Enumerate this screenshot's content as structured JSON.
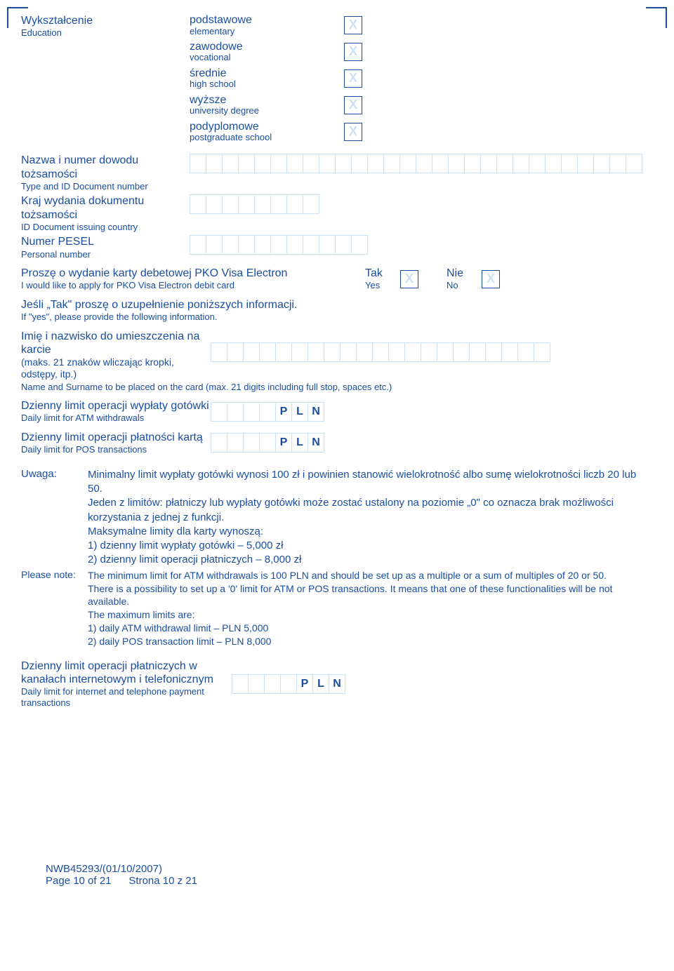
{
  "colors": {
    "primary": "#1a4ea0",
    "light_cell_border": "#cde0f5",
    "background": "#ffffff",
    "checkbox_x": "#cde0f5"
  },
  "typography": {
    "font_family": "Arial, Helvetica, sans-serif",
    "label_pl_size": 16,
    "label_en_size": 13,
    "note_size": 15
  },
  "education": {
    "label_pl": "Wykształcenie",
    "label_en": "Education",
    "options": [
      {
        "pl": "podstawowe",
        "en": "elementary"
      },
      {
        "pl": "zawodowe",
        "en": "vocational"
      },
      {
        "pl": "średnie",
        "en": "high school"
      },
      {
        "pl": "wyższe",
        "en": "university degree"
      },
      {
        "pl": "podyplomowe",
        "en": "postgraduate school"
      }
    ],
    "checkbox_glyph": "X"
  },
  "id_doc": {
    "label_pl": "Nazwa i numer dowodu tożsamości",
    "label_en": "Type and ID Document number",
    "cells": 28
  },
  "id_country": {
    "label_pl": "Kraj wydania dokumentu tożsamości",
    "label_en": "ID Document issuing country",
    "cells": 8
  },
  "pesel": {
    "label_pl": "Numer PESEL",
    "label_en": "Personal number",
    "cells": 11
  },
  "card_request": {
    "text_pl": "Proszę o wydanie karty debetowej PKO Visa Electron",
    "text_en": "I would like to apply for PKO Visa Electron debit card",
    "yes_pl": "Tak",
    "yes_en": "Yes",
    "no_pl": "Nie",
    "no_en": "No",
    "checkbox_glyph": "X"
  },
  "if_yes": {
    "text_pl": "Jeśli „Tak\" proszę o uzupełnienie poniższych informacji.",
    "text_en": "If \"yes\", please provide the following information."
  },
  "card_name": {
    "label_pl": "Imię i nazwisko do umieszczenia na karcie",
    "note_pl": "(maks. 21 znaków wliczając kropki, odstępy, itp.)",
    "label_en": "Name and Surname to be placed on the card (max. 21 digits including full stop, spaces etc.)",
    "cells": 21
  },
  "atm_limit": {
    "label_pl": "Dzienny limit operacji wypłaty gotówki",
    "label_en": "Daily limit for ATM withdrawals",
    "cells": 4,
    "currency": [
      "P",
      "L",
      "N"
    ]
  },
  "pos_limit": {
    "label_pl": "Dzienny limit operacji płatności kartą",
    "label_en": "Daily limit for POS transactions",
    "cells": 4,
    "currency": [
      "P",
      "L",
      "N"
    ]
  },
  "note": {
    "label_pl": "Uwaga:",
    "label_en": "Please note:",
    "lines_pl": [
      "Minimalny limit wypłaty gotówki wynosi 100 zł i powinien stanowić wielokrotność albo sumę wielokrotności liczb 20 lub 50.",
      "Jeden z limitów: płatniczy lub wypłaty gotówki może zostać ustalony na poziomie „0\" co oznacza brak możliwości korzystania z jednej z funkcji.",
      "Maksymalne limity dla karty wynoszą:",
      "1) dzienny limit wypłaty gotówki – 5,000 zł",
      "2) dzienny limit operacji płatniczych – 8,000 zł"
    ],
    "lines_en": [
      "The minimum limit for ATM withdrawals is 100 PLN and should be set up as a multiple or a sum of multiples of 20 or 50.",
      "There is a possibility to set up a '0' limit for ATM or POS transactions. It means that one of these functionalities will be not available.",
      "The maximum limits are:",
      "1) daily ATM withdrawal limit – PLN 5,000",
      "2) daily POS transaction limit – PLN 8,000"
    ]
  },
  "internet_limit": {
    "label_pl": "Dzienny limit operacji płatniczych w kanałach internetowym i telefonicznym",
    "label_en": "Daily limit for internet and telephone payment transactions",
    "cells": 4,
    "currency": [
      "P",
      "L",
      "N"
    ]
  },
  "footer": {
    "ref": "NWB45293/(01/10/2007)",
    "page_en": "Page 10 of 21",
    "page_pl": "Strona 10 z 21"
  }
}
